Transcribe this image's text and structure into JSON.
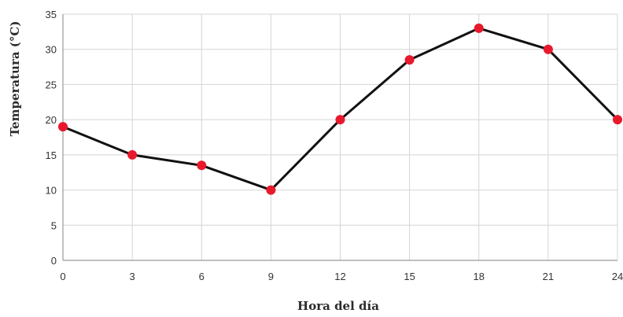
{
  "chart_data": {
    "type": "line",
    "xlabel": "Hora del día",
    "ylabel": "Temperatura (°C)",
    "xlim": [
      0,
      24
    ],
    "ylim": [
      0,
      35
    ],
    "xticks": [
      0,
      3,
      6,
      9,
      12,
      15,
      18,
      21,
      24
    ],
    "yticks": [
      0,
      5,
      10,
      15,
      20,
      25,
      30,
      35
    ],
    "grid": true,
    "series": [
      {
        "x": [
          0,
          3,
          6,
          9,
          12,
          15,
          18,
          21,
          24
        ],
        "y": [
          19,
          15,
          13.5,
          10,
          20,
          28.5,
          33,
          30,
          20
        ],
        "line_color": "#111111",
        "marker_color": "#e8192c"
      }
    ]
  }
}
